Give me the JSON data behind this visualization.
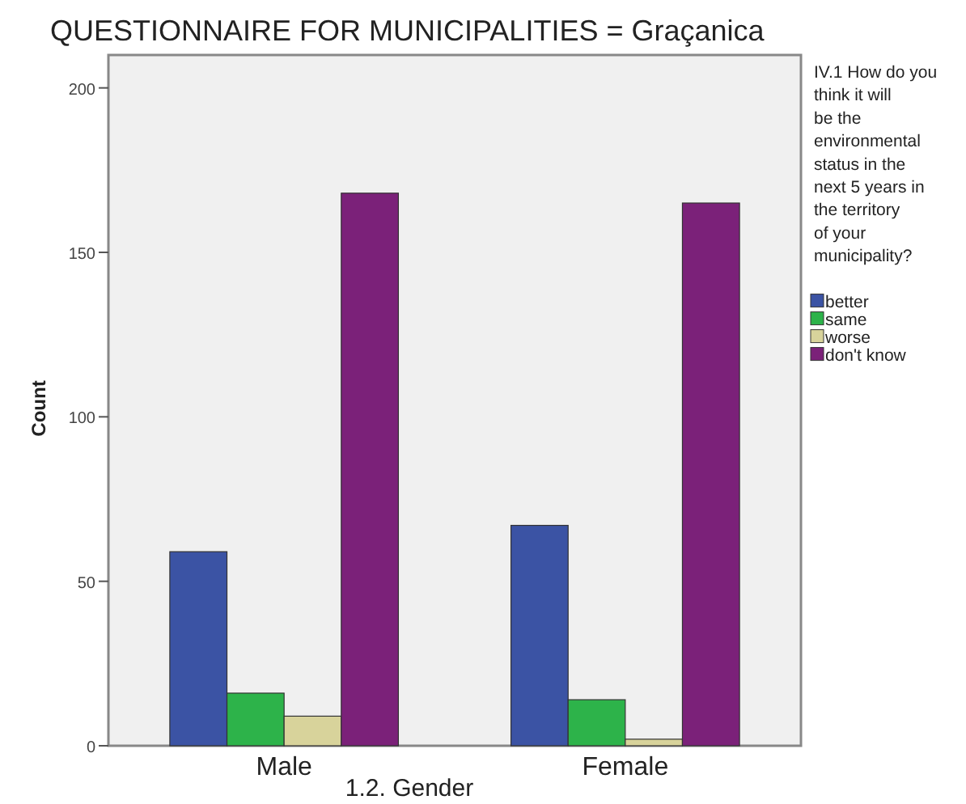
{
  "chart_data": {
    "type": "bar",
    "title": "QUESTIONNAIRE FOR MUNICIPALITIES = Graçanica",
    "xlabel": "1.2. Gender",
    "ylabel": "Count",
    "legend_title": "IV.1 How do you think it will be the environmental status in the next 5 years in the territory of your municipality?",
    "categories": [
      "Male",
      "Female"
    ],
    "series": [
      {
        "name": "better",
        "color": "#3b53a4",
        "values": [
          59,
          67
        ]
      },
      {
        "name": "same",
        "color": "#2db34a",
        "values": [
          16,
          14
        ]
      },
      {
        "name": "worse",
        "color": "#d8d39b",
        "values": [
          9,
          2
        ]
      },
      {
        "name": "don't know",
        "color": "#7b2179",
        "values": [
          168,
          165
        ]
      }
    ],
    "ylim": [
      0,
      210
    ],
    "yticks": [
      0,
      50,
      100,
      150,
      200
    ],
    "grid": false,
    "legend": "right"
  }
}
